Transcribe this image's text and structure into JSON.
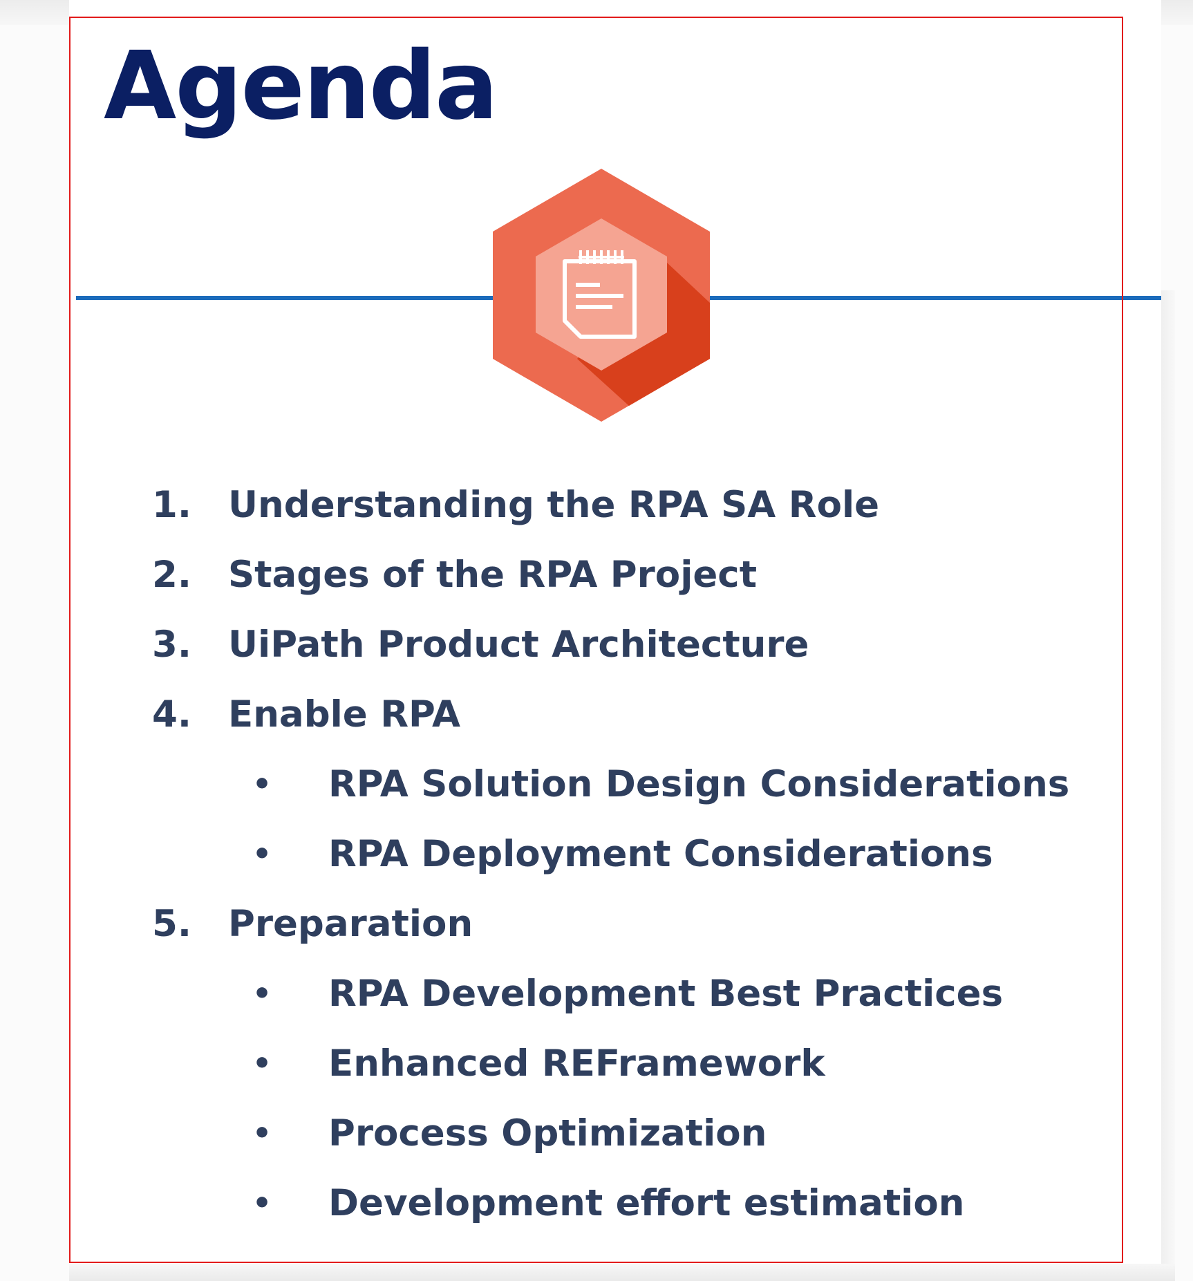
{
  "title": "Agenda",
  "icon": {
    "name": "notepad-icon",
    "colors": {
      "outer_hex": "#ec6a4f",
      "shadow": "#d8401c",
      "inner_hex": "#f5a492",
      "glyph": "#ffffff"
    }
  },
  "colors": {
    "title": "#0b1f63",
    "divider": "#1b6bbb",
    "text": "#2f3f5e",
    "selection": "#e21b1b"
  },
  "agenda": [
    {
      "number": "1.",
      "label": "Understanding the RPA SA Role"
    },
    {
      "number": "2.",
      "label": "Stages of the RPA Project"
    },
    {
      "number": "3.",
      "label": "UiPath Product Architecture"
    },
    {
      "number": "4.",
      "label": "Enable RPA"
    },
    {
      "bullet": "•",
      "label": "RPA Solution Design Considerations"
    },
    {
      "bullet": "•",
      "label": "RPA Deployment Considerations"
    },
    {
      "number": "5.",
      "label": "Preparation"
    },
    {
      "bullet": "•",
      "label": "RPA Development Best Practices"
    },
    {
      "bullet": "•",
      "label": "Enhanced REFramework"
    },
    {
      "bullet": "•",
      "label": "Process Optimization"
    },
    {
      "bullet": "•",
      "label": "Development effort estimation"
    }
  ]
}
